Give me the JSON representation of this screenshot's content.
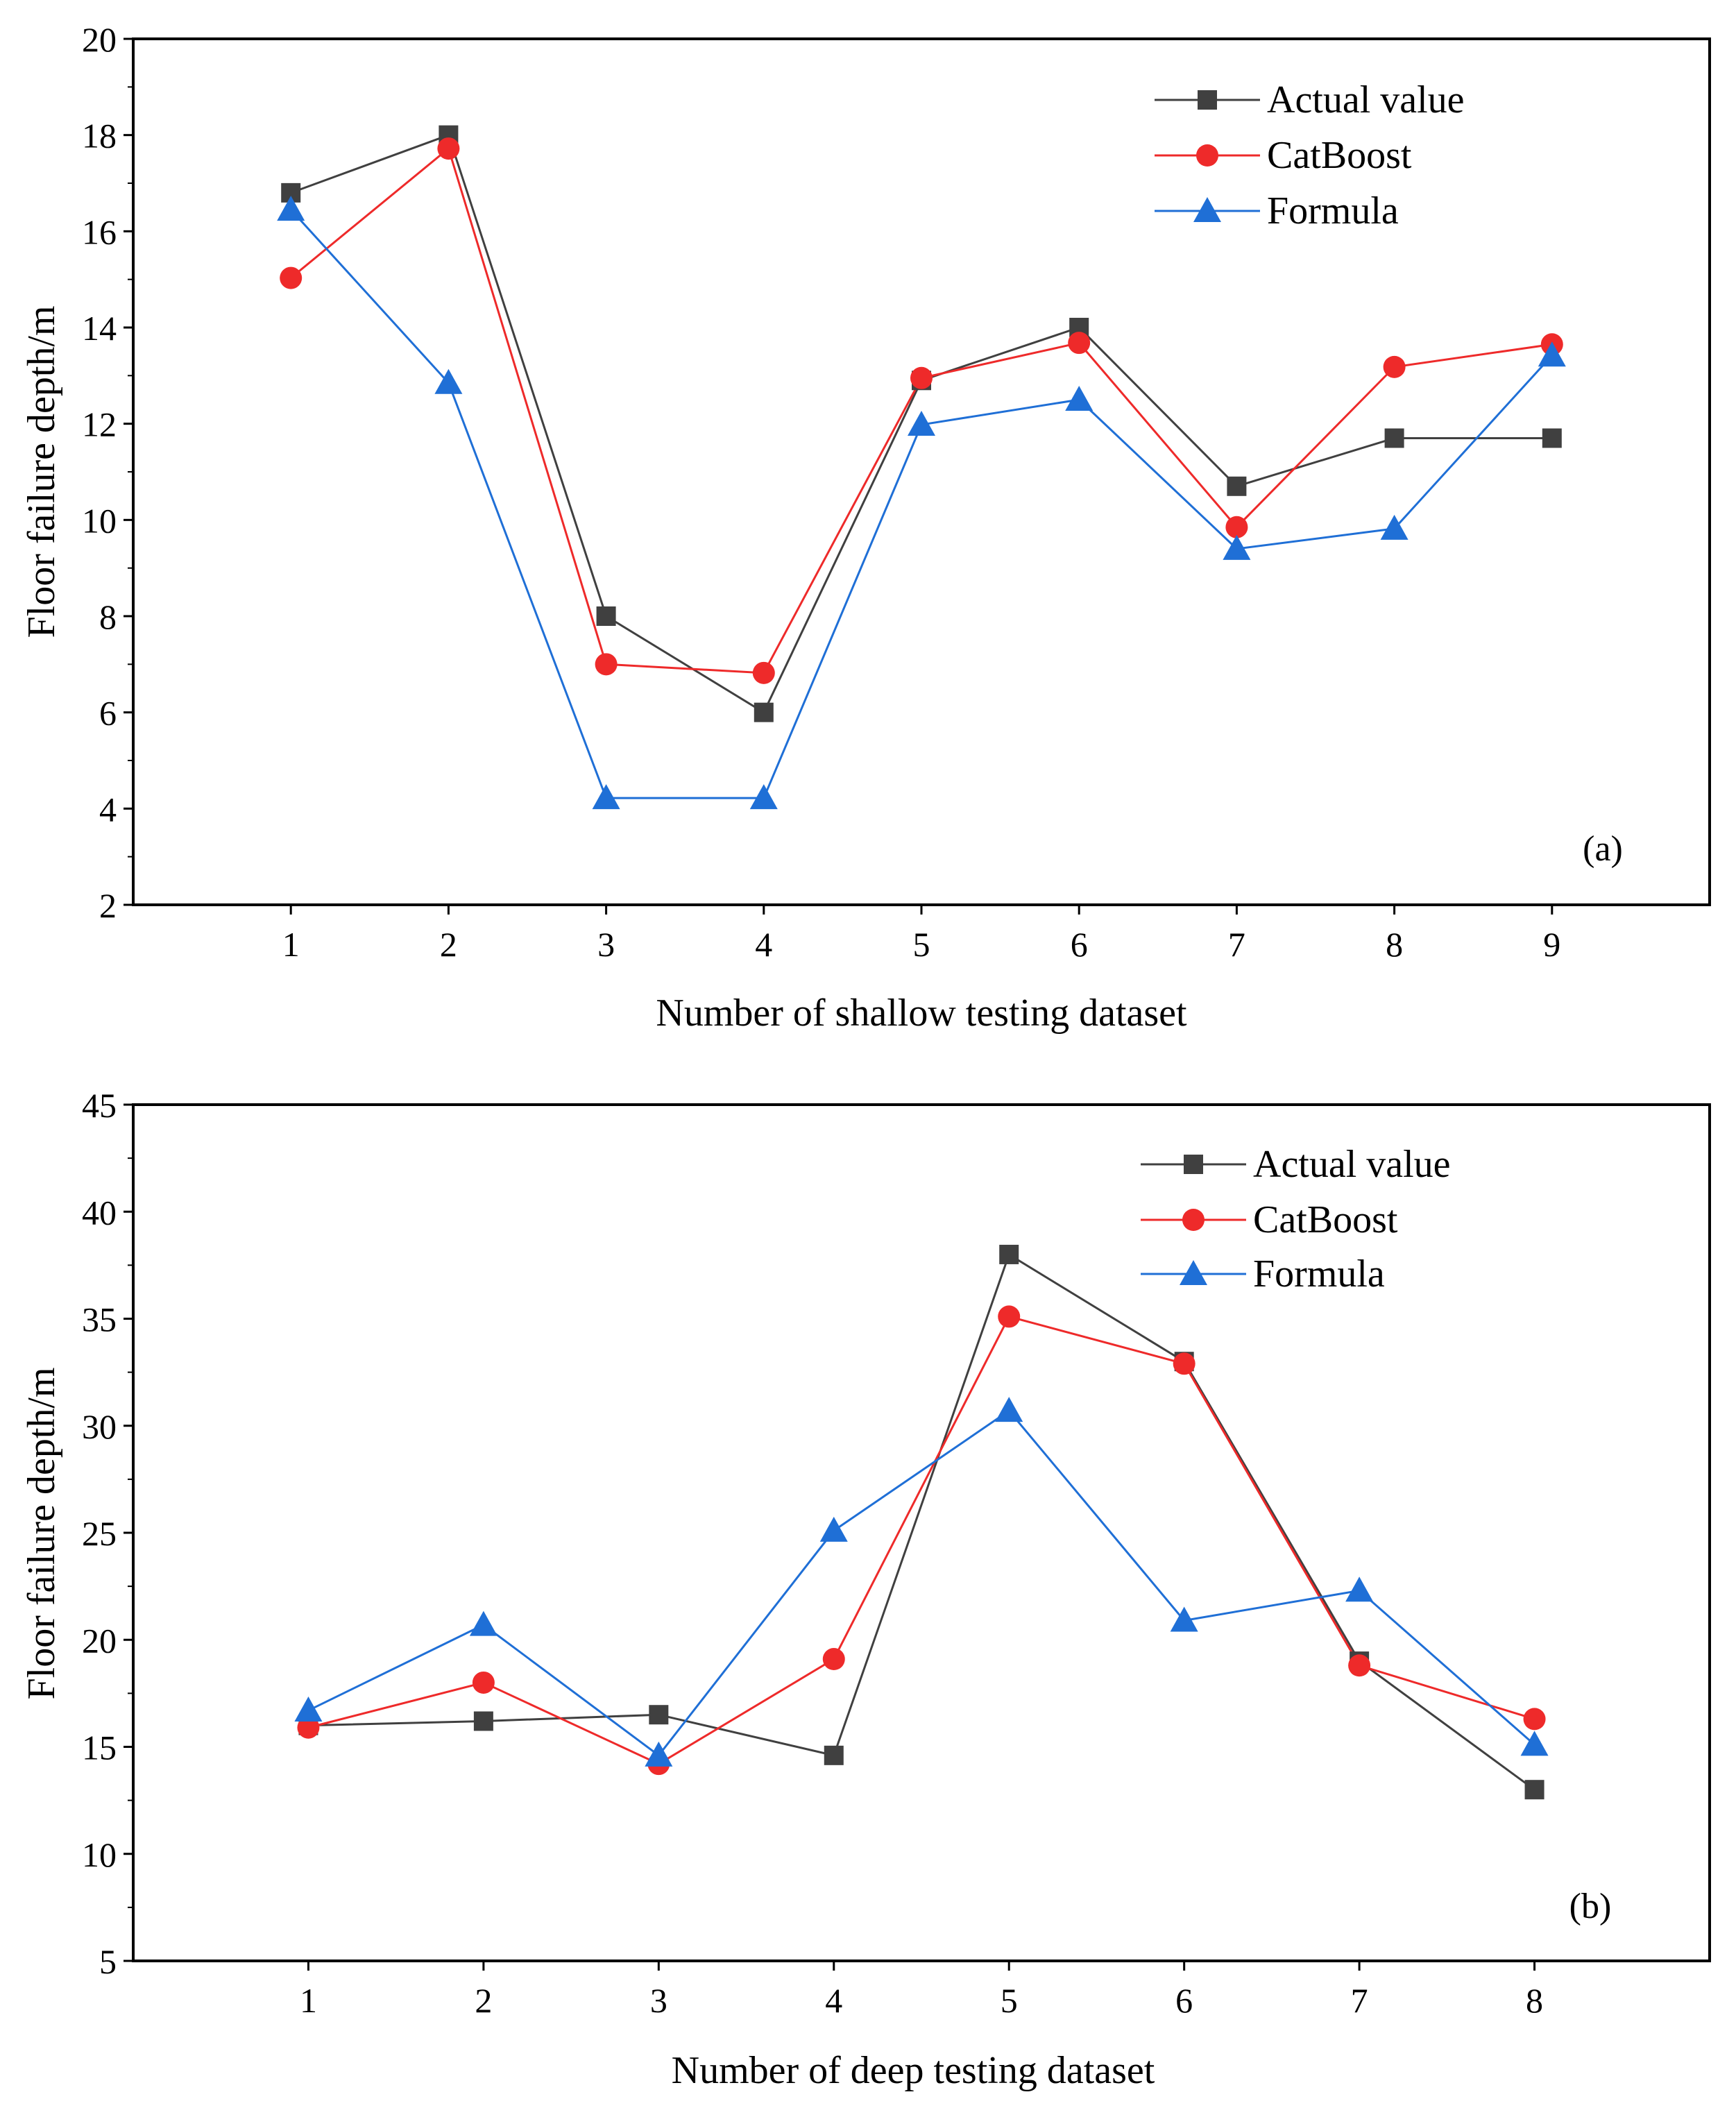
{
  "colors": {
    "actual": "#404040",
    "catboost": "#ee2a2a",
    "formula": "#1f6fd6"
  },
  "chart_data": [
    {
      "type": "line",
      "panel_label": "(a)",
      "xlabel": "Number of shallow testing dataset",
      "ylabel": "Floor failure depth/m",
      "x": [
        1,
        2,
        3,
        4,
        5,
        6,
        7,
        8,
        9
      ],
      "xlim": [
        0,
        10
      ],
      "ylim": [
        2,
        20
      ],
      "yticks": [
        2,
        4,
        6,
        8,
        10,
        12,
        14,
        16,
        18,
        20
      ],
      "legend_position": "top-right",
      "series": [
        {
          "name": "Actual value",
          "marker": "square",
          "color_key": "actual",
          "values": [
            16.8,
            18.0,
            8.0,
            6.0,
            12.9,
            14.0,
            10.7,
            11.7,
            11.7
          ]
        },
        {
          "name": "CatBoost",
          "marker": "circle",
          "color_key": "catboost",
          "values": [
            15.03,
            17.72,
            7.0,
            6.82,
            12.95,
            13.68,
            9.85,
            13.18,
            13.65
          ]
        },
        {
          "name": "Formula",
          "marker": "triangle",
          "color_key": "formula",
          "values": [
            16.45,
            12.85,
            4.22,
            4.22,
            11.98,
            12.5,
            9.4,
            9.82,
            13.42
          ]
        }
      ]
    },
    {
      "type": "line",
      "panel_label": "(b)",
      "xlabel": "Number of deep testing dataset",
      "ylabel": "Floor failure depth/m",
      "x": [
        1,
        2,
        3,
        4,
        5,
        6,
        7,
        8
      ],
      "xlim": [
        0,
        9
      ],
      "ylim": [
        5,
        45
      ],
      "yticks": [
        5,
        10,
        15,
        20,
        25,
        30,
        35,
        40,
        45
      ],
      "legend_position": "top-right",
      "series": [
        {
          "name": "Actual value",
          "marker": "square",
          "color_key": "actual",
          "values": [
            16.0,
            16.2,
            16.5,
            14.6,
            38.0,
            33.0,
            19.0,
            13.0
          ]
        },
        {
          "name": "CatBoost",
          "marker": "circle",
          "color_key": "catboost",
          "values": [
            15.9,
            18.0,
            14.2,
            19.1,
            35.1,
            32.9,
            18.8,
            16.3
          ]
        },
        {
          "name": "Formula",
          "marker": "triangle",
          "color_key": "formula",
          "values": [
            16.7,
            20.7,
            14.6,
            25.1,
            30.7,
            20.9,
            22.3,
            15.1
          ]
        }
      ]
    }
  ]
}
